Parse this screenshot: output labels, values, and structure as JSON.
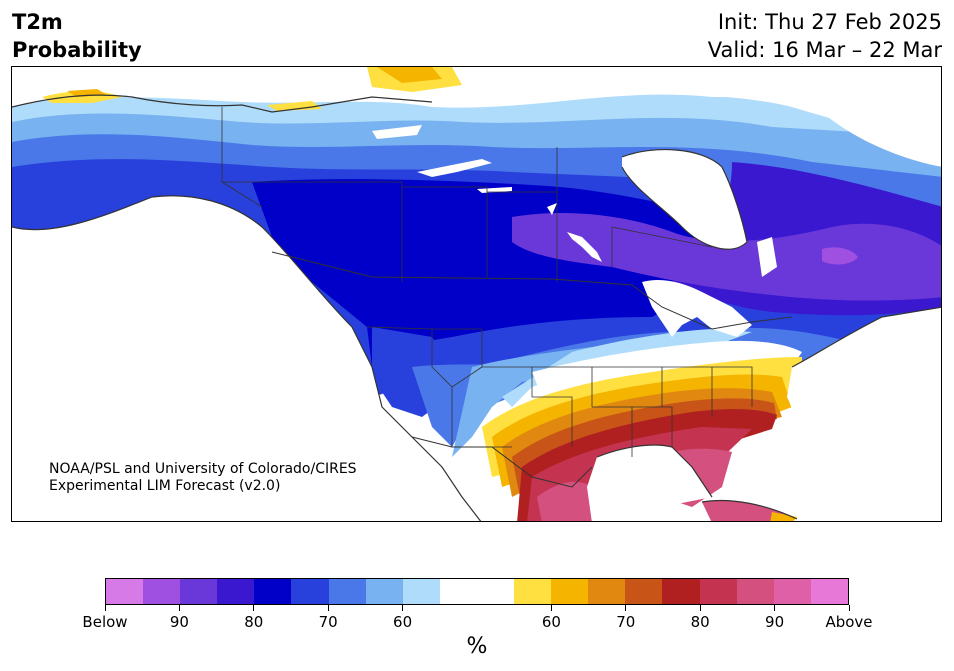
{
  "header": {
    "variable": "T2m",
    "product": "Probability",
    "init": "Init: Thu 27 Feb 2025",
    "valid": "Valid: 16 Mar – 22 Mar"
  },
  "credit": {
    "line1": "NOAA/PSL and University of Colorado/CIRES",
    "line2": "Experimental LIM Forecast (v2.0)"
  },
  "colorbar": {
    "unit": "%",
    "colors": [
      "#d67ae8",
      "#a050e0",
      "#6a38d8",
      "#3a18d0",
      "#0000c8",
      "#2840dc",
      "#4a78e8",
      "#78b2f0",
      "#b0dcfc",
      "#ffffff",
      "#ffffff",
      "#ffe040",
      "#f4b400",
      "#e08810",
      "#c85418",
      "#b02020",
      "#c43450",
      "#d4507e",
      "#e060a8",
      "#e878d8"
    ],
    "tick_labels": [
      "Below",
      "90",
      "80",
      "70",
      "60",
      "60",
      "70",
      "80",
      "90",
      "Above"
    ]
  },
  "map_colors": {
    "land_neutral": "#ffffff",
    "below_light": "#b0dcfc",
    "below_60": "#78b2f0",
    "below_65": "#4a78e8",
    "below_70": "#2840dc",
    "below_80": "#0000c8",
    "below_85": "#3a18d0",
    "below_90": "#6a38d8",
    "below_95": "#a050e0",
    "above_55": "#ffe040",
    "above_60": "#f4b400",
    "above_65": "#e08810",
    "above_70": "#c85418",
    "above_75": "#b02020",
    "above_80": "#c43450",
    "above_85": "#d4507e",
    "coast": "#333333"
  }
}
